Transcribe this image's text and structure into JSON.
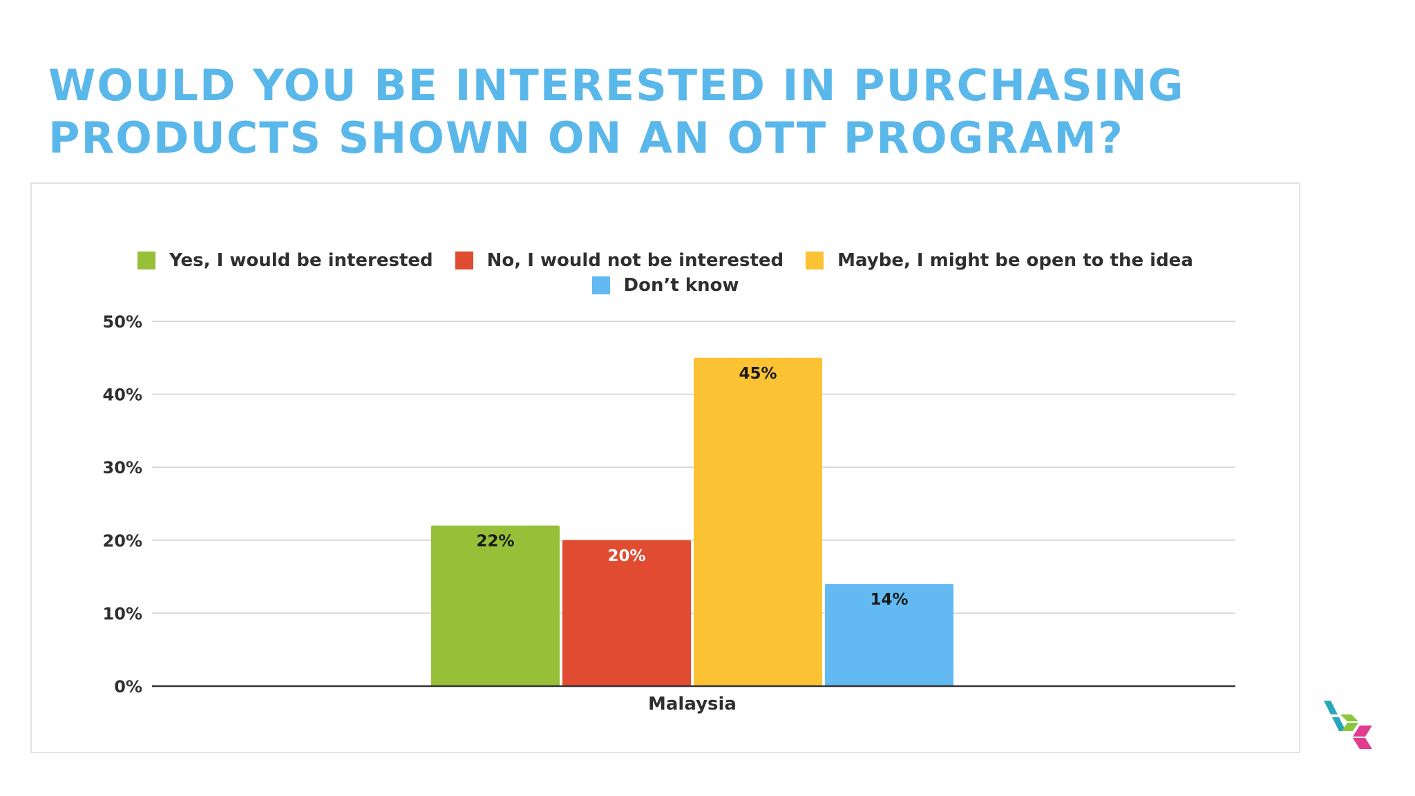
{
  "slide": {
    "title_line1": "WOULD YOU BE INTERESTED IN PURCHASING",
    "title_line2": "PRODUCTS SHOWN ON AN OTT PROGRAM?"
  },
  "colors": {
    "title": "#5ab7ea",
    "yes": "#97bf38",
    "no": "#e04b31",
    "maybe": "#fbc333",
    "dont_know": "#63b9f2",
    "gridline": "#d9d6dc",
    "axis": "#333333",
    "text": "#2f2f2f"
  },
  "chart_data": {
    "type": "bar",
    "title": "",
    "xlabel": "",
    "ylabel": "",
    "categories": [
      "Malaysia"
    ],
    "series": [
      {
        "name": "Yes, I would be interested",
        "values": [
          22
        ],
        "data_label": "22%",
        "color": "#97bf38",
        "label_color": "#1a1a1a"
      },
      {
        "name": "No, I would not be interested",
        "values": [
          20
        ],
        "data_label": "20%",
        "color": "#e04b31",
        "label_color": "#ffffff"
      },
      {
        "name": "Maybe, I might be open to the idea",
        "values": [
          45
        ],
        "data_label": "45%",
        "color": "#fbc333",
        "label_color": "#1a1a1a"
      },
      {
        "name": "Don’t know",
        "values": [
          14
        ],
        "data_label": "14%",
        "color": "#63b9f2",
        "label_color": "#1a1a1a"
      }
    ],
    "ylim": [
      0,
      50
    ],
    "yticks": [
      0,
      10,
      20,
      30,
      40,
      50
    ],
    "ytick_labels": [
      "0%",
      "10%",
      "20%",
      "30%",
      "40%",
      "50%"
    ],
    "grid": true,
    "legend": "top"
  },
  "logo": {
    "icon": "cube-logo-icon"
  }
}
